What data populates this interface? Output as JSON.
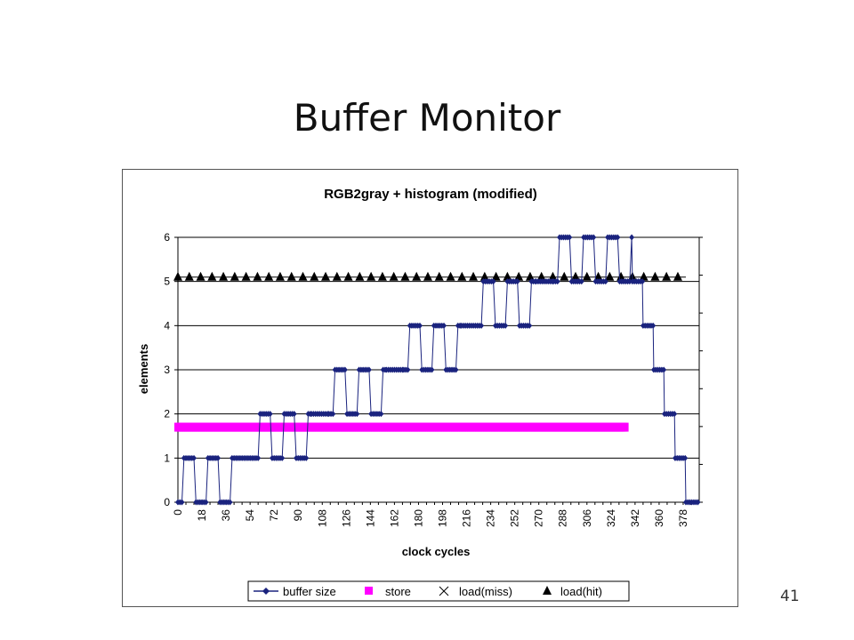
{
  "slide": {
    "title": "Buffer Monitor",
    "page_number": "41"
  },
  "chart_data": {
    "type": "line",
    "title": "RGB2gray + histogram (modified)",
    "xlabel": "clock cycles",
    "ylabel": "elements",
    "xlim": [
      0,
      390
    ],
    "ylim": [
      0,
      6
    ],
    "yticks": [
      0,
      1,
      2,
      3,
      4,
      5,
      6
    ],
    "xtick_labels": [
      "0",
      "18",
      "36",
      "54",
      "72",
      "90",
      "108",
      "126",
      "144",
      "162",
      "180",
      "198",
      "216",
      "234",
      "252",
      "270",
      "288",
      "306",
      "324",
      "342",
      "360",
      "378"
    ],
    "grid": true,
    "legend_position": "bottom",
    "colors": {
      "buffer_size": "#1a237e",
      "store": "#ff00ff",
      "load_miss": "#000000",
      "load_hit": "#000000"
    },
    "series": [
      {
        "name": "buffer size",
        "marker": "diamond",
        "note_range": "level steps with toggling",
        "segments": [
          {
            "x_start": 0,
            "x_end": 45,
            "low": 0,
            "high": 1
          },
          {
            "x_start": 45,
            "x_end": 57,
            "low": 1,
            "high": 1
          },
          {
            "x_start": 57,
            "x_end": 100,
            "low": 1,
            "high": 2
          },
          {
            "x_start": 100,
            "x_end": 113,
            "low": 2,
            "high": 2
          },
          {
            "x_start": 113,
            "x_end": 156,
            "low": 2,
            "high": 3
          },
          {
            "x_start": 156,
            "x_end": 169,
            "low": 3,
            "high": 3
          },
          {
            "x_start": 169,
            "x_end": 212,
            "low": 3,
            "high": 4
          },
          {
            "x_start": 212,
            "x_end": 224,
            "low": 4,
            "high": 4
          },
          {
            "x_start": 224,
            "x_end": 268,
            "low": 4,
            "high": 5
          },
          {
            "x_start": 268,
            "x_end": 281,
            "low": 5,
            "high": 5
          },
          {
            "x_start": 281,
            "x_end": 340,
            "low": 5,
            "high": 6
          },
          {
            "x_start": 340,
            "x_end": 348,
            "low": 5,
            "high": 5
          },
          {
            "x_start": 348,
            "x_end": 356,
            "low": 4,
            "high": 4
          },
          {
            "x_start": 356,
            "x_end": 364,
            "low": 3,
            "high": 3
          },
          {
            "x_start": 364,
            "x_end": 372,
            "low": 2,
            "high": 2
          },
          {
            "x_start": 372,
            "x_end": 380,
            "low": 1,
            "high": 1
          },
          {
            "x_start": 380,
            "x_end": 390,
            "low": 0,
            "high": 0
          }
        ]
      },
      {
        "name": "store",
        "marker": "square",
        "y": 1.7,
        "x_start": 0,
        "x_end": 335
      },
      {
        "name": "load(miss)",
        "marker": "x",
        "points": []
      },
      {
        "name": "load(hit)",
        "marker": "triangle",
        "y": 5.1,
        "x_start": 0,
        "x_end": 380,
        "spacing": 8.5
      }
    ]
  }
}
